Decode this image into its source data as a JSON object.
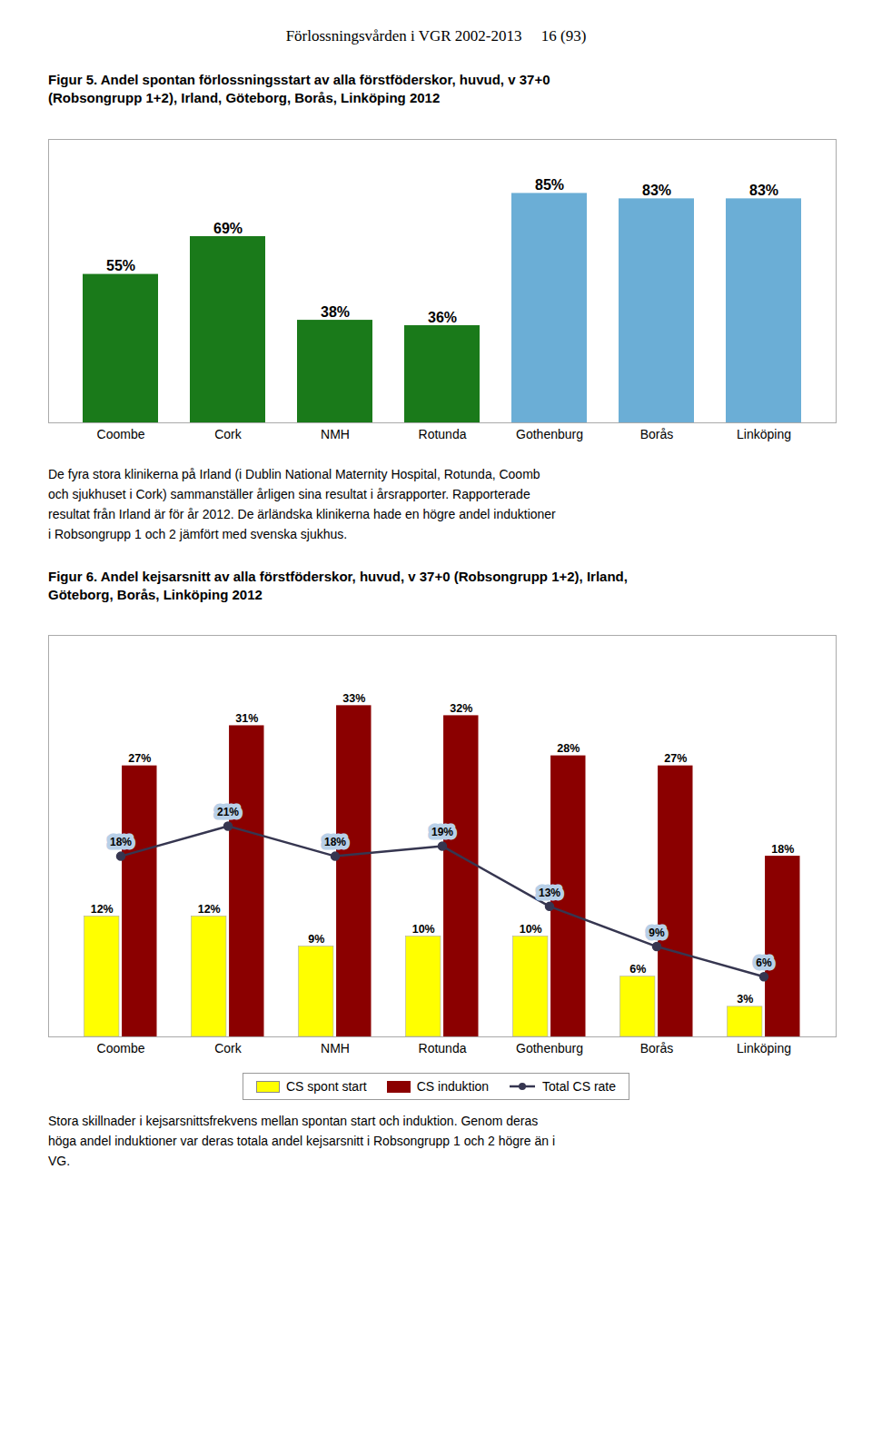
{
  "title": "Förlossningsvården i VGR 2002-2013     16 (93)",
  "chart_data": [
    {
      "type": "bar",
      "title": "Figur 5. Andel spontan förlossningsstart av alla förstföderskor, huvud, v 37+0\n(Robsongrupp 1+2), Irland, Göteborg, Borås, Linköping 2012",
      "categories": [
        "Coombe",
        "Cork",
        "NMH",
        "Rotunda",
        "Gothenburg",
        "Borås",
        "Linköping"
      ],
      "values": [
        55,
        69,
        38,
        36,
        85,
        83,
        83
      ],
      "value_labels": [
        "55%",
        "69%",
        "38%",
        "36%",
        "85%",
        "83%",
        "83%"
      ],
      "colors": [
        "#1a7a1a",
        "#1a7a1a",
        "#1a7a1a",
        "#1a7a1a",
        "#6baed6",
        "#6baed6",
        "#6baed6"
      ],
      "ylim": [
        0,
        105
      ],
      "data_labels": true,
      "tick_labels": "x",
      "annotations": [
        "De fyra stora klinikerna på Irland (i Dublin National Maternity Hospital, Rotunda, Coomb",
        "och sjukhuset i Cork) sammanställer årligen sina resultat i årsrapporter. Rapporterade",
        "resultat från Irland är för år 2012. De ärländska klinikerna hade en högre andel induktioner",
        "i Robsongrupp 1 och 2 jämfört med svenska sjukhus."
      ]
    },
    {
      "type": "bar",
      "title": "Figur 6. Andel kejsarsnitt av alla förstföderskor, huvud, v 37+0 (Robsongrupp 1+2), Irland,\nGöteborg, Borås, Linköping 2012",
      "categories": [
        "Coombe",
        "Cork",
        "NMH",
        "Rotunda",
        "Gothenburg",
        "Borås",
        "Linköping"
      ],
      "series": [
        {
          "name": "CS spont start",
          "type": "bar",
          "color": "#ffff00",
          "values": [
            12,
            12,
            9,
            10,
            10,
            6,
            3
          ],
          "value_labels": [
            "12%",
            "12%",
            "9%",
            "10%",
            "10%",
            "6%",
            "3%"
          ]
        },
        {
          "name": "CS induktion",
          "type": "bar",
          "color": "#8b0000",
          "values": [
            27,
            31,
            33,
            32,
            28,
            27,
            18
          ],
          "value_labels": [
            "27%",
            "31%",
            "33%",
            "32%",
            "28%",
            "27%",
            "18%"
          ]
        },
        {
          "name": "Total CS rate",
          "type": "line",
          "color": "#363650",
          "marker": "circle",
          "values": [
            18,
            21,
            18,
            19,
            13,
            9,
            6
          ],
          "value_labels": [
            "18%",
            "21%",
            "18%",
            "19%",
            "13%",
            "9%",
            "6%"
          ]
        }
      ],
      "ylim": [
        0,
        40
      ],
      "data_labels": true,
      "tick_labels": "x",
      "legend": "bottom",
      "annotations": [
        "Stora skillnader i kejsarsnittsfrekvens mellan spontan start och induktion. Genom deras",
        "höga andel induktioner var deras totala andel kejsarsnitt i Robsongrupp 1 och 2 högre än i",
        "VG."
      ]
    }
  ]
}
